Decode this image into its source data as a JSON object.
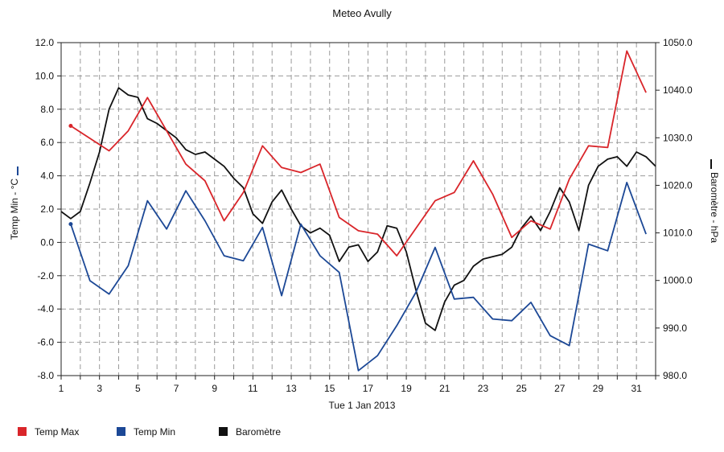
{
  "chart_data": {
    "type": "line",
    "title": "Meteo  Avully",
    "xlabel": "Tue 1 Jan 2013",
    "ylabel_left": "Temp Min - °C",
    "ylabel_right": "Baromètre - hPa",
    "xlim": [
      1,
      32
    ],
    "ylim_left": [
      -8,
      12
    ],
    "ylim_right": [
      980,
      1050
    ],
    "x_ticks": [
      1,
      3,
      5,
      7,
      9,
      11,
      13,
      15,
      17,
      19,
      21,
      23,
      25,
      27,
      29,
      31
    ],
    "y_left_ticks": [
      "12.0",
      "10.0",
      "8.0",
      "6.0",
      "4.0",
      "2.0",
      "0.0",
      "-2.0",
      "-4.0",
      "-6.0",
      "-8.0"
    ],
    "y_right_ticks": [
      "1050.0",
      "1040.0",
      "1030.0",
      "1020.0",
      "1010.0",
      "1000.0",
      "990.0",
      "980.0"
    ],
    "grid": true,
    "legend_position": "bottom-left",
    "series": [
      {
        "name": "Temp Max",
        "color": "#d9252a",
        "axis": "left",
        "points": [
          [
            1.5,
            7.0
          ],
          [
            3.5,
            5.5
          ],
          [
            4.5,
            6.7
          ],
          [
            5.5,
            8.7
          ],
          [
            7.5,
            4.7
          ],
          [
            8.5,
            3.7
          ],
          [
            9.5,
            1.3
          ],
          [
            10.5,
            3.0
          ],
          [
            11.5,
            5.8
          ],
          [
            12.5,
            4.5
          ],
          [
            13.5,
            4.2
          ],
          [
            14.5,
            4.7
          ],
          [
            15.5,
            1.5
          ],
          [
            16.5,
            0.7
          ],
          [
            17.5,
            0.5
          ],
          [
            18.5,
            -0.8
          ],
          [
            20.5,
            2.5
          ],
          [
            21.5,
            3.0
          ],
          [
            22.5,
            4.9
          ],
          [
            23.5,
            2.9
          ],
          [
            24.5,
            0.3
          ],
          [
            25.5,
            1.3
          ],
          [
            26.5,
            0.8
          ],
          [
            27.5,
            3.8
          ],
          [
            28.5,
            5.8
          ],
          [
            29.5,
            5.7
          ],
          [
            30.5,
            11.5
          ],
          [
            31.5,
            9.0
          ]
        ]
      },
      {
        "name": "Temp Min",
        "color": "#1c4896",
        "axis": "left",
        "points": [
          [
            1.5,
            1.1
          ],
          [
            2.5,
            -2.3
          ],
          [
            3.5,
            -3.1
          ],
          [
            4.5,
            -1.4
          ],
          [
            5.5,
            2.5
          ],
          [
            6.5,
            0.8
          ],
          [
            7.5,
            3.1
          ],
          [
            8.5,
            1.3
          ],
          [
            9.5,
            -0.8
          ],
          [
            10.5,
            -1.1
          ],
          [
            11.5,
            0.9
          ],
          [
            12.5,
            -3.2
          ],
          [
            13.5,
            1.1
          ],
          [
            14.5,
            -0.8
          ],
          [
            15.5,
            -1.8
          ],
          [
            16.5,
            -7.7
          ],
          [
            17.5,
            -6.8
          ],
          [
            18.5,
            -5.0
          ],
          [
            19.5,
            -3.0
          ],
          [
            20.5,
            -0.3
          ],
          [
            21.5,
            -3.4
          ],
          [
            22.5,
            -3.3
          ],
          [
            23.5,
            -4.6
          ],
          [
            24.5,
            -4.7
          ],
          [
            25.5,
            -3.6
          ],
          [
            26.5,
            -5.6
          ],
          [
            27.5,
            -6.2
          ],
          [
            28.5,
            -0.1
          ],
          [
            29.5,
            -0.5
          ],
          [
            30.5,
            3.6
          ],
          [
            31.5,
            0.5
          ]
        ]
      },
      {
        "name": "Baromètre",
        "color": "#111111",
        "axis": "right",
        "points": [
          [
            1.0,
            1014.5
          ],
          [
            1.5,
            1013
          ],
          [
            2.0,
            1014.5
          ],
          [
            2.5,
            1020.5
          ],
          [
            3.0,
            1027
          ],
          [
            3.5,
            1036
          ],
          [
            4.0,
            1040.5
          ],
          [
            4.5,
            1039
          ],
          [
            5.0,
            1038.5
          ],
          [
            5.5,
            1034
          ],
          [
            6.0,
            1033
          ],
          [
            6.5,
            1031.5
          ],
          [
            7.0,
            1030
          ],
          [
            7.5,
            1027.5
          ],
          [
            8.0,
            1026.5
          ],
          [
            8.5,
            1027
          ],
          [
            9.0,
            1025.5
          ],
          [
            9.5,
            1024
          ],
          [
            10.0,
            1021.5
          ],
          [
            10.5,
            1019.5
          ],
          [
            11.0,
            1014
          ],
          [
            11.5,
            1012
          ],
          [
            12.0,
            1016.5
          ],
          [
            12.5,
            1019
          ],
          [
            13.0,
            1015
          ],
          [
            13.5,
            1011.5
          ],
          [
            14.0,
            1010
          ],
          [
            14.5,
            1011
          ],
          [
            15.0,
            1009.5
          ],
          [
            15.5,
            1004
          ],
          [
            16.0,
            1007
          ],
          [
            16.5,
            1007.5
          ],
          [
            17.0,
            1004
          ],
          [
            17.5,
            1006
          ],
          [
            18.0,
            1011.5
          ],
          [
            18.5,
            1011
          ],
          [
            19.0,
            1006
          ],
          [
            19.5,
            998
          ],
          [
            20.0,
            991
          ],
          [
            20.5,
            989.5
          ],
          [
            21.0,
            995.5
          ],
          [
            21.5,
            999
          ],
          [
            22.0,
            1000
          ],
          [
            22.5,
            1003
          ],
          [
            23.0,
            1004.5
          ],
          [
            23.5,
            1005
          ],
          [
            24.0,
            1005.5
          ],
          [
            24.5,
            1007
          ],
          [
            25.0,
            1011
          ],
          [
            25.5,
            1013.5
          ],
          [
            26.0,
            1010.5
          ],
          [
            26.5,
            1014.5
          ],
          [
            27.0,
            1019.5
          ],
          [
            27.5,
            1016.5
          ],
          [
            28.0,
            1010.5
          ],
          [
            28.5,
            1020
          ],
          [
            29.0,
            1024
          ],
          [
            29.5,
            1025.5
          ],
          [
            30.0,
            1026
          ],
          [
            30.5,
            1024
          ],
          [
            31.0,
            1027
          ],
          [
            31.5,
            1026
          ],
          [
            32.0,
            1024
          ]
        ]
      }
    ]
  }
}
